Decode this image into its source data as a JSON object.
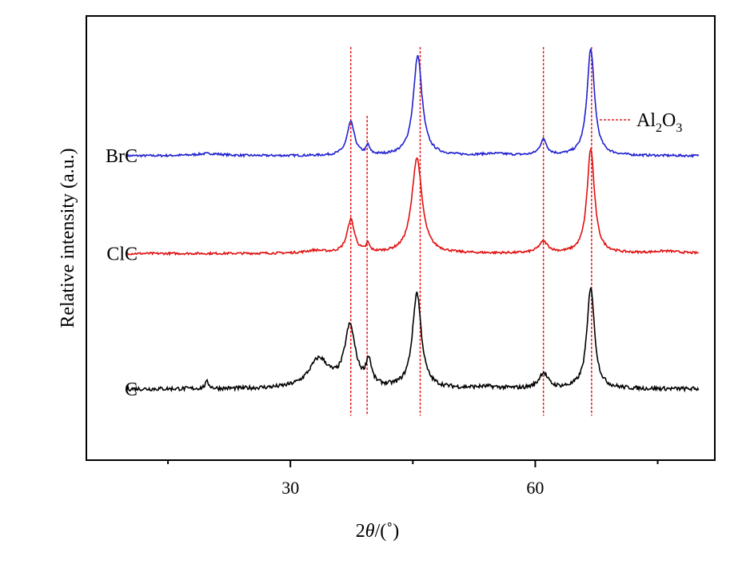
{
  "chart_data": {
    "type": "line",
    "title": "",
    "xlabel_prefix": "2",
    "xlabel_theta": "θ",
    "xlabel_suffix": "/(˚)",
    "ylabel": "Relative intensity (a.u.)",
    "xlim": [
      5,
      82
    ],
    "ylim": [
      0,
      10
    ],
    "x_ticks_major": [
      30,
      60
    ],
    "x_tick_labels": [
      "30",
      "60"
    ],
    "x_ticks_minor": [
      15,
      45,
      75
    ],
    "y_ticks_shown": false,
    "grid": false,
    "legend": {
      "position": "top-right",
      "entries": [
        {
          "name_base": "Al",
          "sub1": "2",
          "mid": "O",
          "sub2": "3",
          "color": "#e41a1c",
          "style": "dotted"
        }
      ]
    },
    "reference_lines": [
      37.4,
      39.4,
      45.9,
      61.0,
      66.9
    ],
    "series": [
      {
        "name": "BrC",
        "color": "#2020d0",
        "baseline": 6.85,
        "noise": 0.025,
        "peaks": [
          [
            37.4,
            0.75,
            0.55
          ],
          [
            39.5,
            0.2,
            0.25
          ],
          [
            45.6,
            2.25,
            0.65
          ],
          [
            61.0,
            0.35,
            0.5
          ],
          [
            66.8,
            2.4,
            0.55
          ],
          [
            20.0,
            0.05,
            2.0
          ],
          [
            55.0,
            0.04,
            2.0
          ]
        ]
      },
      {
        "name": "ClC",
        "color": "#e01010",
        "baseline": 4.65,
        "noise": 0.025,
        "peaks": [
          [
            37.4,
            0.75,
            0.55
          ],
          [
            39.5,
            0.18,
            0.25
          ],
          [
            45.5,
            2.15,
            0.75
          ],
          [
            61.0,
            0.25,
            0.7
          ],
          [
            66.8,
            2.35,
            0.55
          ],
          [
            33.0,
            0.06,
            1.5
          ],
          [
            76.0,
            0.05,
            2.0
          ]
        ]
      },
      {
        "name": "C",
        "color": "#000000",
        "baseline": 1.6,
        "noise": 0.045,
        "peaks": [
          [
            37.3,
            1.35,
            0.8
          ],
          [
            33.5,
            0.65,
            1.5
          ],
          [
            39.6,
            0.55,
            0.4
          ],
          [
            45.5,
            2.15,
            0.65
          ],
          [
            61.0,
            0.35,
            0.65
          ],
          [
            66.8,
            2.3,
            0.55
          ],
          [
            19.8,
            0.15,
            0.3
          ],
          [
            54.0,
            0.04,
            2.0
          ]
        ]
      }
    ]
  }
}
